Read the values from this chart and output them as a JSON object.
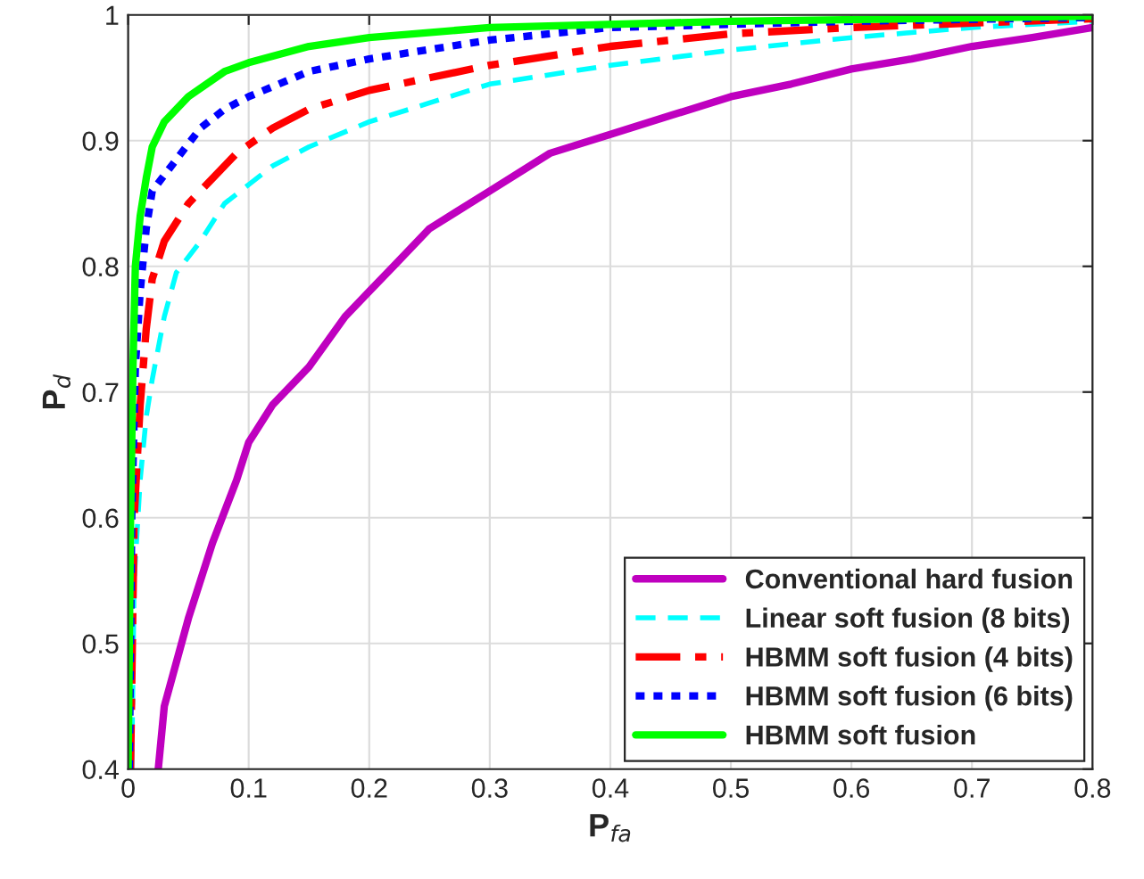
{
  "chart_data": {
    "type": "line",
    "xlabel": "P$_{fa}$",
    "ylabel": "P$_{d}$",
    "xlim": [
      0,
      0.8
    ],
    "ylim": [
      0.4,
      1
    ],
    "xticks": [
      {
        "value": 0,
        "label": "0"
      },
      0.1,
      0.2,
      0.3,
      0.4,
      0.5,
      0.6,
      0.7,
      0.8
    ],
    "yticks": [
      0.4,
      0.5,
      0.6,
      0.7,
      0.8,
      0.9,
      {
        "value": 1,
        "label": "1"
      }
    ],
    "grid": true,
    "legend": "bottom right",
    "marker": "none",
    "series": [
      {
        "name": "Conventional hard fusion",
        "color": "#bf00bf",
        "line_style": "solid",
        "x": [
          0.025,
          0.03,
          0.05,
          0.07,
          0.09,
          0.1,
          0.12,
          0.15,
          0.18,
          0.2,
          0.22,
          0.25,
          0.3,
          0.35,
          0.4,
          0.45,
          0.5,
          0.55,
          0.6,
          0.65,
          0.7,
          0.75,
          0.8
        ],
        "values": [
          0.4,
          0.45,
          0.52,
          0.58,
          0.63,
          0.66,
          0.69,
          0.72,
          0.76,
          0.78,
          0.8,
          0.83,
          0.86,
          0.89,
          0.905,
          0.92,
          0.935,
          0.945,
          0.957,
          0.965,
          0.975,
          0.982,
          0.99
        ]
      },
      {
        "name": "Linear soft fusion (8 bits)",
        "color": "#00ffff",
        "line_style": "dashed",
        "x": [
          0.003,
          0.005,
          0.01,
          0.015,
          0.02,
          0.03,
          0.04,
          0.06,
          0.08,
          0.1,
          0.12,
          0.15,
          0.2,
          0.25,
          0.3,
          0.4,
          0.5,
          0.6,
          0.7,
          0.8
        ],
        "values": [
          0.4,
          0.55,
          0.63,
          0.68,
          0.71,
          0.76,
          0.795,
          0.82,
          0.85,
          0.865,
          0.88,
          0.895,
          0.915,
          0.93,
          0.945,
          0.96,
          0.972,
          0.982,
          0.99,
          0.995
        ]
      },
      {
        "name": "HBMM soft fusion (4 bits)",
        "color": "#ff0000",
        "line_style": "dashdot",
        "x": [
          0.002,
          0.005,
          0.01,
          0.015,
          0.02,
          0.03,
          0.05,
          0.07,
          0.09,
          0.12,
          0.15,
          0.2,
          0.3,
          0.4,
          0.5,
          0.6,
          0.8
        ],
        "values": [
          0.4,
          0.6,
          0.69,
          0.75,
          0.79,
          0.82,
          0.85,
          0.87,
          0.89,
          0.91,
          0.925,
          0.94,
          0.96,
          0.975,
          0.985,
          0.99,
          0.997
        ]
      },
      {
        "name": "HBMM soft fusion (6 bits)",
        "color": "#0000ff",
        "line_style": "dotted",
        "x": [
          0.001,
          0.003,
          0.006,
          0.01,
          0.015,
          0.02,
          0.04,
          0.06,
          0.08,
          0.1,
          0.15,
          0.2,
          0.3,
          0.4,
          0.6,
          0.8
        ],
        "values": [
          0.4,
          0.6,
          0.72,
          0.78,
          0.83,
          0.86,
          0.885,
          0.91,
          0.925,
          0.935,
          0.955,
          0.965,
          0.98,
          0.99,
          0.995,
          0.998
        ]
      },
      {
        "name": "HBMM soft fusion",
        "color": "#00ff00",
        "line_style": "solid",
        "x": [
          0.0,
          0.002,
          0.004,
          0.006,
          0.01,
          0.015,
          0.02,
          0.03,
          0.05,
          0.08,
          0.1,
          0.15,
          0.2,
          0.3,
          0.5,
          0.8
        ],
        "values": [
          0.4,
          0.6,
          0.72,
          0.8,
          0.84,
          0.87,
          0.895,
          0.915,
          0.935,
          0.955,
          0.962,
          0.975,
          0.982,
          0.99,
          0.995,
          0.999
        ]
      }
    ]
  }
}
